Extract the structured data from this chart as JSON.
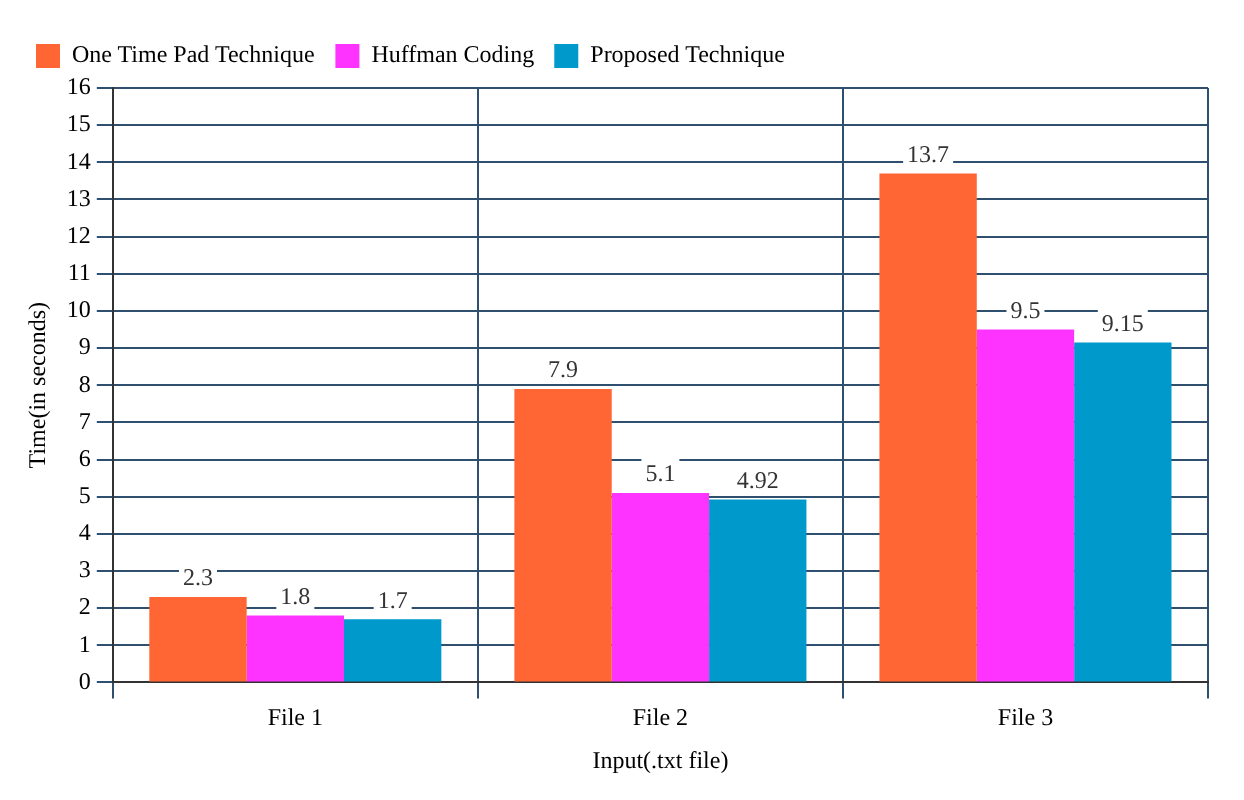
{
  "chart_data": {
    "type": "bar",
    "xlabel": "Input(.txt file)",
    "ylabel": "Time(in seconds)",
    "categories": [
      "File 1",
      "File 2",
      "File 3"
    ],
    "series": [
      {
        "name": "One Time Pad Technique",
        "color": "#ff6633",
        "values": [
          2.3,
          7.9,
          13.7
        ]
      },
      {
        "name": "Huffman Coding",
        "color": "#ff33ff",
        "values": [
          1.8,
          5.1,
          9.5
        ]
      },
      {
        "name": "Proposed Technique",
        "color": "#0099cc",
        "values": [
          1.7,
          4.92,
          9.15
        ]
      }
    ],
    "ylim": [
      0,
      16
    ],
    "yticks": [
      0,
      1,
      2,
      3,
      4,
      5,
      6,
      7,
      8,
      9,
      10,
      11,
      12,
      13,
      14,
      15,
      16
    ],
    "grid": true,
    "legend": "top left",
    "data_labels": true
  }
}
